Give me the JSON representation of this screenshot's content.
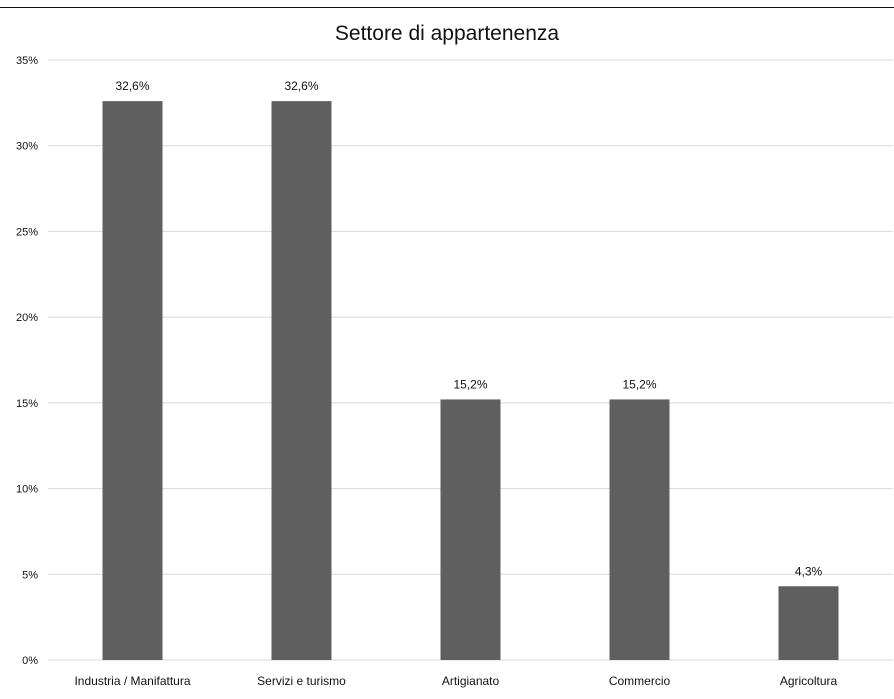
{
  "chart_data": {
    "type": "bar",
    "title": "Settore di appartenenza",
    "xlabel": "",
    "ylabel": "",
    "categories": [
      "Industria / Manifattura",
      "Servizi e turismo",
      "Artigianato",
      "Commercio",
      "Agricoltura"
    ],
    "values": [
      32.6,
      32.6,
      15.2,
      15.2,
      4.3
    ],
    "value_labels": [
      "32,6%",
      "32,6%",
      "15,2%",
      "15,2%",
      "4,3%"
    ],
    "ylim": [
      0,
      35
    ],
    "yticks": [
      0,
      5,
      10,
      15,
      20,
      25,
      30,
      35
    ],
    "ytick_labels": [
      "0%",
      "5%",
      "10%",
      "15%",
      "20%",
      "25%",
      "30%",
      "35%"
    ],
    "grid": true,
    "legend": "none",
    "colors": {
      "bar": "#5f5f5f",
      "grid": "#d9d9d9",
      "text": "#111111"
    }
  }
}
